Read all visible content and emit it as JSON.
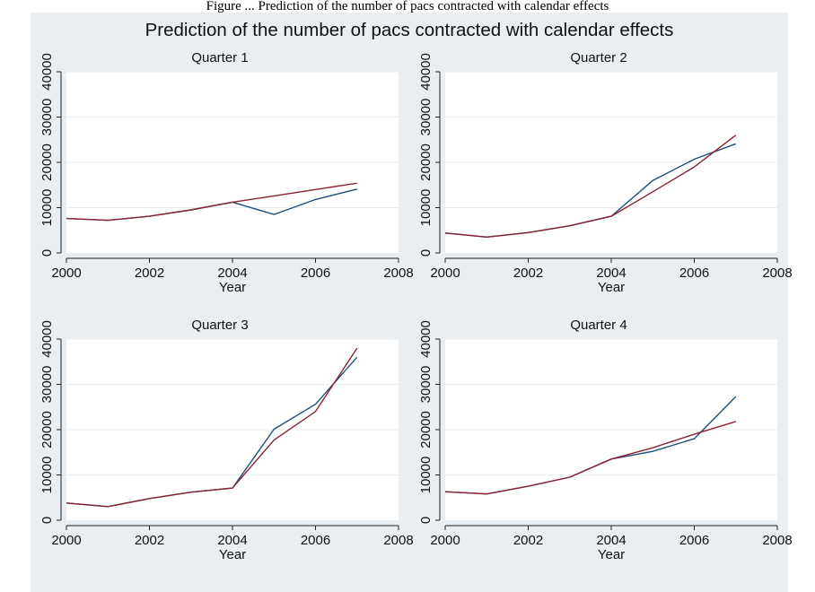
{
  "header": {
    "caption": "Figure ... Prediction of the number of pacs contracted with calendar effects"
  },
  "chart_data": {
    "type": "line",
    "title": "Prediction of the number of pacs contracted with calendar effects",
    "colors": {
      "background": "#e8eef1",
      "plot": "#ffffff",
      "observed": "#1f4e79",
      "predicted": "#8b2332",
      "grid": "#e8eef1"
    },
    "panels": [
      {
        "title": "Quarter 1",
        "xlabel": "Year",
        "xlim": [
          2000,
          2008
        ],
        "ylim": [
          0,
          40000
        ],
        "xticks": [
          2000,
          2002,
          2004,
          2006,
          2008
        ],
        "yticks": [
          0,
          10000,
          20000,
          30000,
          40000
        ],
        "x": [
          2000,
          2001,
          2002,
          2003,
          2004,
          2005,
          2006,
          2007
        ],
        "series": [
          {
            "role": "observed",
            "values": [
              7600,
              7200,
              8100,
              9500,
              11200,
              8500,
              11800,
              14100
            ]
          },
          {
            "role": "predicted",
            "values": [
              7600,
              7200,
              8100,
              9500,
              11200,
              12600,
              14000,
              15400
            ]
          }
        ]
      },
      {
        "title": "Quarter 2",
        "xlabel": "Year",
        "xlim": [
          2000,
          2008
        ],
        "ylim": [
          0,
          40000
        ],
        "xticks": [
          2000,
          2002,
          2004,
          2006,
          2008
        ],
        "yticks": [
          0,
          10000,
          20000,
          30000,
          40000
        ],
        "x": [
          2000,
          2001,
          2002,
          2003,
          2004,
          2005,
          2006,
          2007
        ],
        "series": [
          {
            "role": "observed",
            "values": [
              4400,
              3500,
              4500,
              6000,
              8100,
              16000,
              20700,
              24100
            ]
          },
          {
            "role": "predicted",
            "values": [
              4400,
              3500,
              4500,
              6000,
              8100,
              13500,
              19000,
              26000
            ]
          }
        ]
      },
      {
        "title": "Quarter 3",
        "xlabel": "Year",
        "xlim": [
          2000,
          2008
        ],
        "ylim": [
          0,
          40000
        ],
        "xticks": [
          2000,
          2002,
          2004,
          2006,
          2008
        ],
        "yticks": [
          0,
          10000,
          20000,
          30000,
          40000
        ],
        "x": [
          2000,
          2001,
          2002,
          2003,
          2004,
          2005,
          2006,
          2007
        ],
        "series": [
          {
            "role": "observed",
            "values": [
              3800,
              3000,
              4800,
              6200,
              7100,
              20100,
              25600,
              36000
            ]
          },
          {
            "role": "predicted",
            "values": [
              3800,
              3000,
              4800,
              6200,
              7100,
              17700,
              24000,
              38000
            ]
          }
        ]
      },
      {
        "title": "Quarter 4",
        "xlabel": "Year",
        "xlim": [
          2000,
          2008
        ],
        "ylim": [
          0,
          40000
        ],
        "xticks": [
          2000,
          2002,
          2004,
          2006,
          2008
        ],
        "yticks": [
          0,
          10000,
          20000,
          30000,
          40000
        ],
        "x": [
          2000,
          2001,
          2002,
          2003,
          2004,
          2005,
          2006,
          2007
        ],
        "series": [
          {
            "role": "observed",
            "values": [
              6300,
              5800,
              7500,
              9500,
              13500,
              15200,
              18000,
              27300
            ]
          },
          {
            "role": "predicted",
            "values": [
              6300,
              5800,
              7500,
              9500,
              13500,
              16000,
              19000,
              21800
            ]
          }
        ]
      }
    ]
  }
}
